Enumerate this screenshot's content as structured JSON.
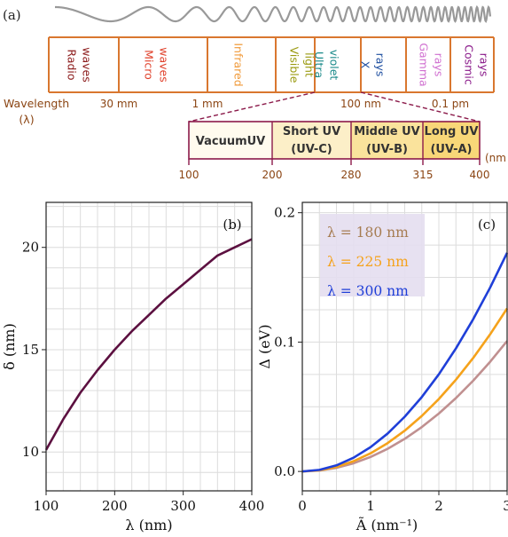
{
  "panel_a": {
    "label": "(a)",
    "wavelength_label": "Wavelength",
    "lambda_label": "(λ)",
    "bands": [
      {
        "lines": [
          "Radio",
          "waves"
        ],
        "color": "#8b1a1a"
      },
      {
        "lines": [
          "Micro",
          "waves"
        ],
        "color": "#e0402a"
      },
      {
        "lines": [
          "Infrared"
        ],
        "color": "#f09a3a"
      },
      {
        "lines": [
          "Visible",
          "light"
        ],
        "color": "#9a9a10"
      },
      {
        "lines": [
          "Ultra",
          "violet"
        ],
        "color": "#1a8a8a"
      },
      {
        "lines": [
          "X",
          "rays"
        ],
        "color": "#1f4fa0"
      },
      {
        "lines": [
          "Gamma",
          "rays"
        ],
        "color": "#d070d0"
      },
      {
        "lines": [
          "Cosmic",
          "rays"
        ],
        "color": "#8a1a8a"
      }
    ],
    "scale_ticks": [
      "30 mm",
      "1 mm",
      "100 nm",
      "0.1 pm"
    ],
    "uv_bands": [
      {
        "lines": [
          "VacuumUV"
        ]
      },
      {
        "lines": [
          "Short UV",
          "(UV-C)"
        ]
      },
      {
        "lines": [
          "Middle UV",
          "(UV-B)"
        ]
      },
      {
        "lines": [
          "Long UV",
          "(UV-A)"
        ]
      }
    ],
    "uv_ticks": [
      "100",
      "200",
      "280",
      "315",
      "400"
    ],
    "uv_unit": "(nm",
    "colors": {
      "frame": "#d9772f",
      "uv_frame": "#8b1a4a",
      "wave": "#999999",
      "axis_text": "#8b4513"
    }
  },
  "chart_data": [
    {
      "panel": "(b)",
      "type": "line",
      "xlabel": "λ (nm)",
      "ylabel": "δ (nm)",
      "xlim": [
        100,
        400
      ],
      "ylim": [
        8.1,
        22.2
      ],
      "xticks": [
        "100",
        "200",
        "300",
        "400"
      ],
      "yticks": [
        "10",
        "15",
        "20"
      ],
      "grid": true,
      "series": [
        {
          "color": "#5c1040",
          "x": [
            100,
            125,
            150,
            175,
            200,
            225,
            250,
            275,
            300,
            325,
            350,
            375,
            400
          ],
          "y": [
            10.1,
            11.6,
            12.9,
            14.0,
            15.0,
            15.9,
            16.7,
            17.5,
            18.2,
            18.9,
            19.6,
            20.0,
            20.4
          ]
        }
      ]
    },
    {
      "panel": "(c)",
      "type": "line",
      "xlabel": "Ã (nm⁻¹)",
      "ylabel": "Δ (eV)",
      "xlim": [
        0,
        3
      ],
      "ylim": [
        -0.015,
        0.208
      ],
      "xticks": [
        "0",
        "1",
        "2",
        "3"
      ],
      "yticks": [
        "0.0",
        "0.1",
        "0.2"
      ],
      "grid": true,
      "legend_position": "top-left",
      "series": [
        {
          "name": "λ = 180 nm",
          "color": "#a67c52",
          "line_color": "#c09090",
          "x": [
            0,
            0.25,
            0.5,
            0.75,
            1,
            1.25,
            1.5,
            1.75,
            2,
            2.25,
            2.5,
            2.75,
            3
          ],
          "y": [
            0,
            0.0007,
            0.0028,
            0.0063,
            0.0112,
            0.0175,
            0.0252,
            0.0343,
            0.0448,
            0.0567,
            0.07,
            0.0847,
            0.1008
          ]
        },
        {
          "name": "λ = 225 nm",
          "color": "#f5a21b",
          "line_color": "#f5a21b",
          "x": [
            0,
            0.25,
            0.5,
            0.75,
            1,
            1.25,
            1.5,
            1.75,
            2,
            2.25,
            2.5,
            2.75,
            3
          ],
          "y": [
            0,
            0.0009,
            0.0035,
            0.0079,
            0.014,
            0.0219,
            0.0315,
            0.0429,
            0.056,
            0.0709,
            0.0875,
            0.1059,
            0.126
          ]
        },
        {
          "name": "λ = 300 nm",
          "color": "#1f3fd8",
          "line_color": "#1f3fd8",
          "x": [
            0,
            0.25,
            0.5,
            0.75,
            1,
            1.25,
            1.5,
            1.75,
            2,
            2.25,
            2.5,
            2.75,
            3
          ],
          "y": [
            0,
            0.0012,
            0.0047,
            0.0106,
            0.0188,
            0.0293,
            0.0423,
            0.0575,
            0.0751,
            0.0951,
            0.1174,
            0.142,
            0.169
          ]
        }
      ]
    }
  ]
}
